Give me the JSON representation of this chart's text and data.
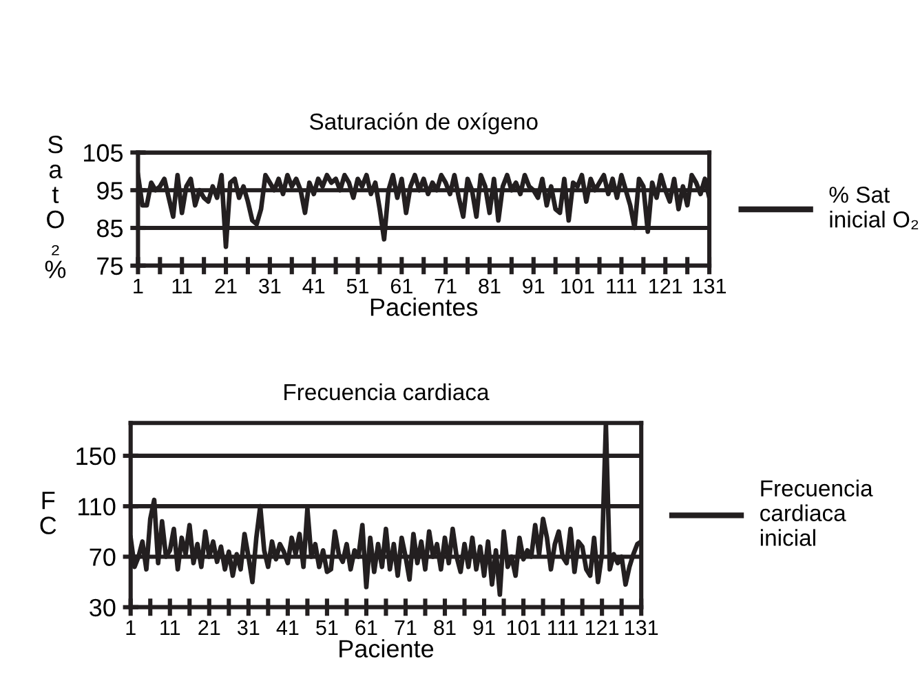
{
  "chart_data": [
    {
      "type": "line",
      "title": "Saturación de oxígeno",
      "xlabel": "Pacientes",
      "ylabel": "Sat O₂ %",
      "x": [
        1,
        2,
        3,
        4,
        5,
        6,
        7,
        8,
        9,
        10,
        11,
        12,
        13,
        14,
        15,
        16,
        17,
        18,
        19,
        20,
        21,
        22,
        23,
        24,
        25,
        26,
        27,
        28,
        29,
        30,
        31,
        32,
        33,
        34,
        35,
        36,
        37,
        38,
        39,
        40,
        41,
        42,
        43,
        44,
        45,
        46,
        47,
        48,
        49,
        50,
        51,
        52,
        53,
        54,
        55,
        56,
        57,
        58,
        59,
        60,
        61,
        62,
        63,
        64,
        65,
        66,
        67,
        68,
        69,
        70,
        71,
        72,
        73,
        74,
        75,
        76,
        77,
        78,
        79,
        80,
        81,
        82,
        83,
        84,
        85,
        86,
        87,
        88,
        89,
        90,
        91,
        92,
        93,
        94,
        95,
        96,
        97,
        98,
        99,
        100,
        101,
        102,
        103,
        104,
        105,
        106,
        107,
        108,
        109,
        110,
        111,
        112,
        113,
        114,
        115,
        116,
        117,
        118,
        119,
        120,
        121,
        122,
        123,
        124,
        125,
        126,
        127,
        128,
        129,
        130,
        131
      ],
      "series": [
        {
          "name": "% Sat inicial O₂",
          "color": "#231f20",
          "values": [
            99,
            91,
            91,
            97,
            95,
            96,
            98,
            93,
            88,
            99,
            89,
            96,
            98,
            91,
            95,
            93,
            92,
            96,
            93,
            99,
            80,
            97,
            98,
            93,
            96,
            92,
            87,
            86,
            90,
            99,
            97,
            95,
            98,
            94,
            99,
            96,
            98,
            95,
            89,
            97,
            94,
            98,
            96,
            99,
            97,
            98,
            95,
            99,
            97,
            93,
            98,
            96,
            99,
            94,
            97,
            90,
            82,
            95,
            99,
            93,
            98,
            89,
            96,
            99,
            95,
            98,
            94,
            97,
            95,
            99,
            97,
            94,
            99,
            93,
            88,
            98,
            95,
            88,
            99,
            96,
            89,
            98,
            87,
            96,
            99,
            95,
            97,
            94,
            99,
            96,
            95,
            93,
            98,
            91,
            96,
            90,
            89,
            98,
            87,
            97,
            96,
            99,
            92,
            98,
            95,
            97,
            99,
            94,
            98,
            93,
            99,
            95,
            91,
            85,
            98,
            96,
            84,
            97,
            93,
            99,
            95,
            92,
            98,
            90,
            96,
            91,
            99,
            97,
            94,
            98,
            93
          ]
        }
      ],
      "xlim": [
        1,
        131
      ],
      "ylim": [
        75,
        105
      ],
      "yticks": [
        75,
        85,
        95,
        105
      ],
      "xticks": [
        1,
        {
          "value": 6,
          "label": null
        },
        11,
        {
          "value": 16,
          "label": null
        },
        21,
        {
          "value": 26,
          "label": null
        },
        31,
        {
          "value": 36,
          "label": null
        },
        41,
        {
          "value": 46,
          "label": null
        },
        51,
        {
          "value": 56,
          "label": null
        },
        61,
        {
          "value": 66,
          "label": null
        },
        71,
        {
          "value": 76,
          "label": null
        },
        81,
        {
          "value": 86,
          "label": null
        },
        91,
        {
          "value": 96,
          "label": null
        },
        101,
        {
          "value": 106,
          "label": null
        },
        111,
        {
          "value": 116,
          "label": null
        },
        121,
        {
          "value": 126,
          "label": null
        },
        131
      ],
      "grid": "y",
      "legend": "right",
      "marker": "none",
      "line_style": "solid"
    },
    {
      "type": "line",
      "title": "Frecuencia cardiaca",
      "xlabel": "Paciente",
      "ylabel": "F C",
      "x": [
        1,
        2,
        3,
        4,
        5,
        6,
        7,
        8,
        9,
        10,
        11,
        12,
        13,
        14,
        15,
        16,
        17,
        18,
        19,
        20,
        21,
        22,
        23,
        24,
        25,
        26,
        27,
        28,
        29,
        30,
        31,
        32,
        33,
        34,
        35,
        36,
        37,
        38,
        39,
        40,
        41,
        42,
        43,
        44,
        45,
        46,
        47,
        48,
        49,
        50,
        51,
        52,
        53,
        54,
        55,
        56,
        57,
        58,
        59,
        60,
        61,
        62,
        63,
        64,
        65,
        66,
        67,
        68,
        69,
        70,
        71,
        72,
        73,
        74,
        75,
        76,
        77,
        78,
        79,
        80,
        81,
        82,
        83,
        84,
        85,
        86,
        87,
        88,
        89,
        90,
        91,
        92,
        93,
        94,
        95,
        96,
        97,
        98,
        99,
        100,
        101,
        102,
        103,
        104,
        105,
        106,
        107,
        108,
        109,
        110,
        111,
        112,
        113,
        114,
        115,
        116,
        117,
        118,
        119,
        120,
        121,
        122,
        123,
        124,
        125,
        126,
        127,
        128,
        129,
        130,
        131
      ],
      "series": [
        {
          "name": "Frecuencia cardiaca inicial",
          "color": "#231f20",
          "values": [
            85,
            62,
            70,
            82,
            60,
            100,
            115,
            65,
            98,
            70,
            75,
            92,
            60,
            85,
            72,
            95,
            65,
            80,
            62,
            90,
            70,
            82,
            66,
            78,
            60,
            74,
            55,
            72,
            60,
            88,
            70,
            50,
            85,
            110,
            75,
            62,
            82,
            68,
            80,
            74,
            65,
            85,
            72,
            88,
            62,
            108,
            70,
            80,
            62,
            75,
            58,
            60,
            90,
            72,
            66,
            80,
            60,
            75,
            70,
            95,
            46,
            85,
            58,
            80,
            62,
            92,
            60,
            80,
            55,
            85,
            70,
            52,
            88,
            65,
            82,
            60,
            90,
            70,
            80,
            60,
            85,
            65,
            92,
            70,
            58,
            80,
            62,
            85,
            60,
            78,
            55,
            82,
            48,
            75,
            40,
            90,
            62,
            70,
            55,
            85,
            68,
            75,
            70,
            95,
            72,
            100,
            85,
            60,
            80,
            90,
            70,
            65,
            92,
            58,
            82,
            78,
            60,
            55,
            85,
            50,
            72,
            175,
            60,
            72,
            65,
            70,
            48,
            62,
            72,
            80,
            82
          ]
        }
      ],
      "xlim": [
        1,
        131
      ],
      "ylim": [
        30,
        176
      ],
      "yticks": [
        30,
        70,
        110,
        150
      ],
      "xticks": [
        1,
        {
          "value": 6,
          "label": null
        },
        11,
        {
          "value": 16,
          "label": null
        },
        21,
        {
          "value": 26,
          "label": null
        },
        31,
        {
          "value": 36,
          "label": null
        },
        41,
        {
          "value": 46,
          "label": null
        },
        51,
        {
          "value": 56,
          "label": null
        },
        61,
        {
          "value": 66,
          "label": null
        },
        71,
        {
          "value": 76,
          "label": null
        },
        81,
        {
          "value": 86,
          "label": null
        },
        91,
        {
          "value": 96,
          "label": null
        },
        101,
        {
          "value": 106,
          "label": null
        },
        111,
        {
          "value": 116,
          "label": null
        },
        121,
        {
          "value": 126,
          "label": null
        },
        131
      ],
      "grid": "y",
      "legend": "right",
      "marker": "none",
      "line_style": "solid"
    }
  ]
}
